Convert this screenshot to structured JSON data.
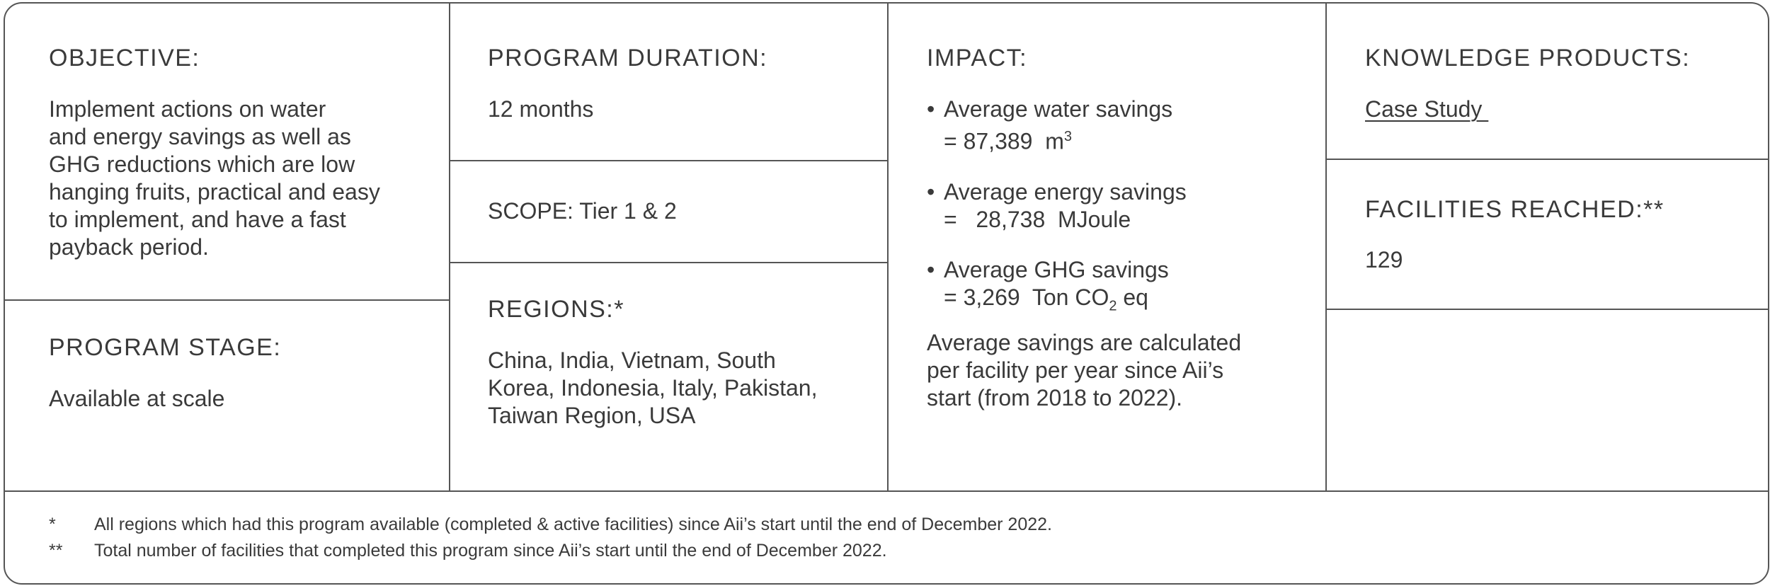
{
  "objective": {
    "heading": "OBJECTIVE:",
    "lines": [
      "Implement actions on water",
      "and energy savings as well as",
      "GHG reductions which are low",
      "hanging fruits, practical and easy",
      "to implement, and have a fast",
      "payback period."
    ]
  },
  "program_stage": {
    "heading": "PROGRAM STAGE:",
    "value": "Available at scale"
  },
  "program_duration": {
    "heading": "PROGRAM DURATION:",
    "value": "12 months"
  },
  "scope": {
    "text": "SCOPE: Tier 1 & 2"
  },
  "regions": {
    "heading": "REGIONS:*",
    "lines": [
      "China, India, Vietnam, South",
      "Korea, Indonesia, Italy, Pakistan,",
      "Taiwan Region, USA"
    ]
  },
  "impact": {
    "heading": "IMPACT:",
    "items": [
      {
        "label": "Average water savings",
        "eq": "= 87,389",
        "unit": "m",
        "sup": "3"
      },
      {
        "label": "Average energy savings",
        "eq": "=   28,738",
        "unit": "MJoule"
      },
      {
        "label": "Average GHG savings",
        "eq": "= 3,269",
        "unit_a": "Ton CO",
        "sub": "2",
        "unit_b": " eq"
      }
    ],
    "note_lines": [
      "Average savings are calculated",
      "per facility per year since Aii’s",
      "start (from 2018 to 2022)."
    ]
  },
  "knowledge_products": {
    "heading": "KNOWLEDGE PRODUCTS:",
    "link": "Case Study "
  },
  "facilities_reached": {
    "heading": "FACILITIES REACHED:**",
    "value": "129"
  },
  "footnotes": [
    {
      "mark": "*",
      "text": "All regions which had this program available (completed & active facilities) since Aii’s start until the end of December 2022."
    },
    {
      "mark": "**",
      "text": "Total number of facilities that completed this program since Aii’s start until the end of December 2022."
    }
  ]
}
